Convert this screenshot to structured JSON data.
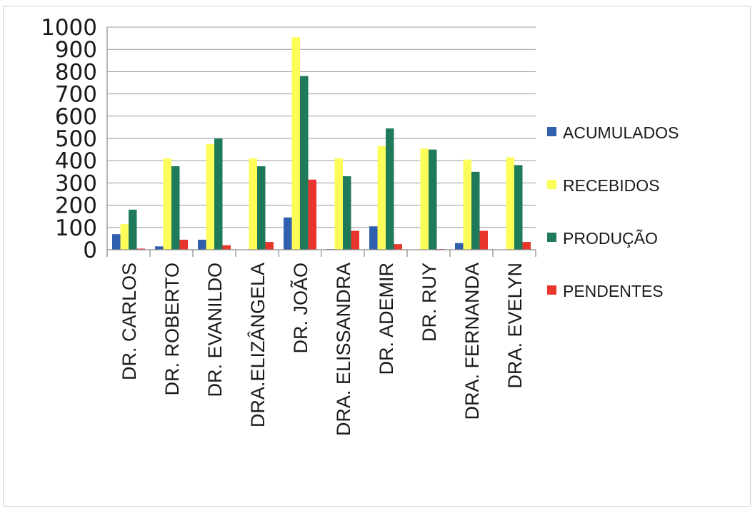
{
  "chart_data": {
    "type": "bar",
    "title": "",
    "xlabel": "",
    "ylabel": "",
    "ylim": [
      0,
      1000
    ],
    "yticks": [
      0,
      100,
      200,
      300,
      400,
      500,
      600,
      700,
      800,
      900,
      1000
    ],
    "grid": true,
    "legend_position": "right",
    "categories": [
      "DR. CARLOS",
      "DR. ROBERTO",
      "DR. EVANILDO",
      "DRA.ELIZÂNGELA",
      "DR. JOÃO",
      "DRA. ELISSANDRA",
      "DR. ADEMIR",
      "DR. RUY",
      "DRA. FERNANDA",
      "DRA. EVELYN"
    ],
    "series": [
      {
        "name": "ACUMULADOS",
        "color": "#2f5fad",
        "values": [
          70,
          15,
          45,
          0,
          145,
          3,
          105,
          0,
          30,
          0
        ]
      },
      {
        "name": "RECEBIDOS",
        "color": "#fdfd5a",
        "values": [
          115,
          410,
          475,
          410,
          955,
          410,
          465,
          455,
          405,
          415
        ]
      },
      {
        "name": "PRODUÇÃO",
        "color": "#1f7a5a",
        "values": [
          180,
          375,
          500,
          375,
          780,
          330,
          545,
          450,
          350,
          380
        ]
      },
      {
        "name": "PENDENTES",
        "color": "#e8362d",
        "values": [
          5,
          45,
          20,
          35,
          315,
          85,
          25,
          3,
          85,
          35
        ]
      }
    ]
  }
}
